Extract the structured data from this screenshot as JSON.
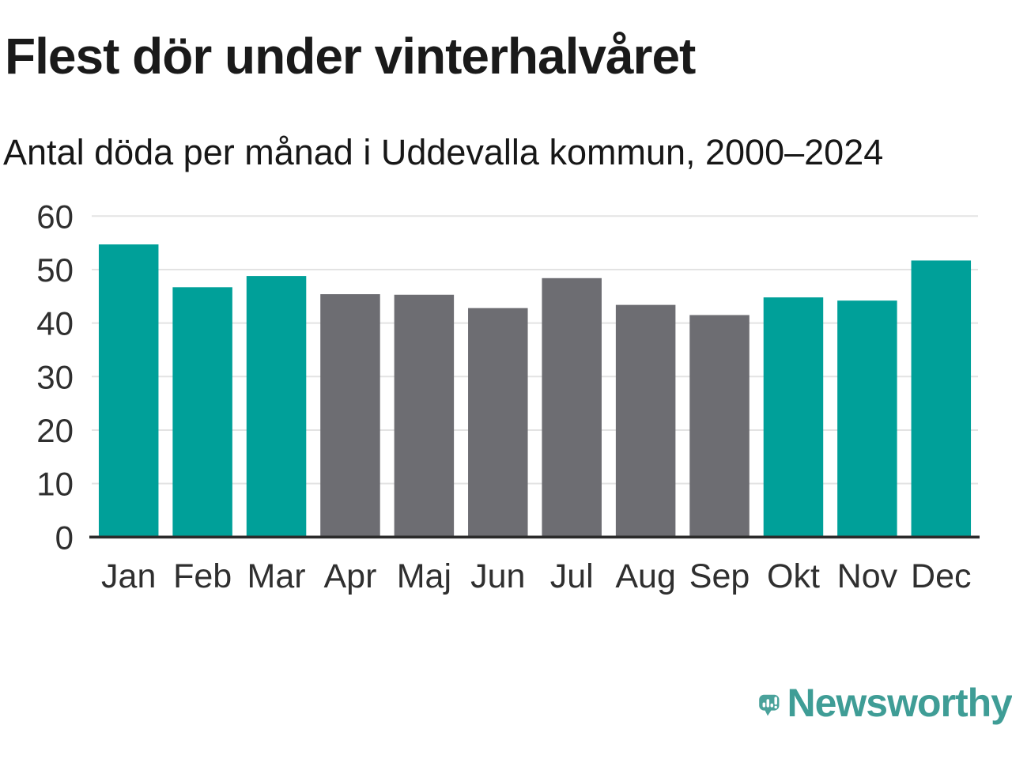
{
  "header": {
    "title": "Flest dör under vinterhalvåret",
    "subtitle": "Antal döda per månad i Uddevalla kommun, 2000–2024"
  },
  "chart_data": {
    "type": "bar",
    "title": "Flest dör under vinterhalvåret",
    "subtitle": "Antal döda per månad i Uddevalla kommun, 2000–2024",
    "categories": [
      "Jan",
      "Feb",
      "Mar",
      "Apr",
      "Maj",
      "Jun",
      "Jul",
      "Aug",
      "Sep",
      "Okt",
      "Nov",
      "Dec"
    ],
    "values": [
      54.7,
      46.7,
      48.8,
      45.4,
      45.3,
      42.8,
      48.4,
      43.4,
      41.5,
      44.8,
      44.2,
      51.7
    ],
    "highlight": [
      true,
      true,
      true,
      false,
      false,
      false,
      false,
      false,
      false,
      true,
      true,
      true
    ],
    "highlighted_categories": [
      "Jan",
      "Feb",
      "Mar",
      "Okt",
      "Nov",
      "Dec"
    ],
    "colors": {
      "highlight": "#00a099",
      "default": "#6d6d72",
      "grid": "#e3e3e3",
      "axis": "#2b2b2b",
      "tick_label": "#2f2f2f"
    },
    "ylim": [
      0,
      60
    ],
    "yticks": [
      0,
      10,
      20,
      30,
      40,
      50,
      60
    ],
    "grid": true,
    "legend_position": "none",
    "xlabel": "",
    "ylabel": ""
  },
  "branding": {
    "logo_text": "Newsworthy",
    "logo_icon": "speech-bubble-bar-chart-icon",
    "icon_color": "#4aa29b",
    "icon_mark_color": "#ffffff",
    "text_color": "#3f9d96"
  }
}
